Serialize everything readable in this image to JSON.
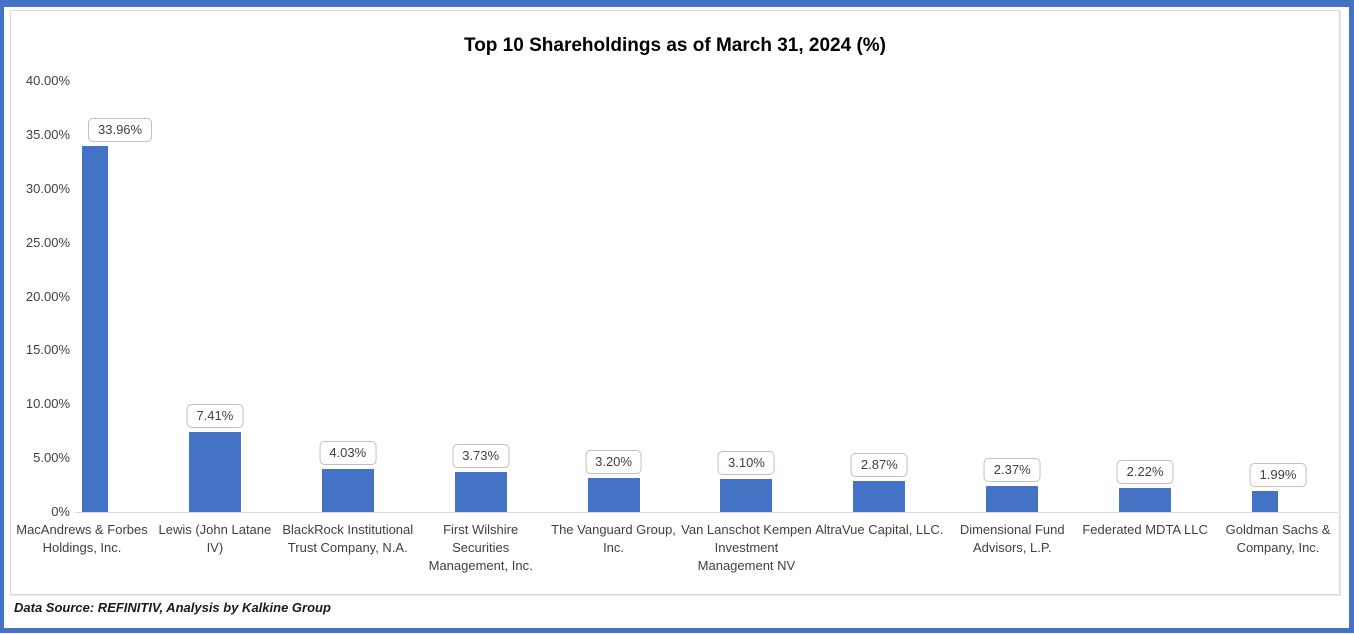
{
  "page": {
    "frame_color": "#4472C4",
    "background_color": "#FFFFFF",
    "chart_border_color": "#D9D9D9"
  },
  "chart_data": {
    "type": "bar",
    "title": "Top 10 Shareholdings as of March 31, 2024 (%)",
    "categories": [
      "MacAndrews & Forbes Holdings, Inc.",
      "Lewis (John Latane IV)",
      "BlackRock Institutional Trust Company, N.A.",
      "First Wilshire Securities Management, Inc.",
      "The Vanguard Group, Inc.",
      "Van Lanschot Kempen Investment Management NV",
      "AltraVue Capital, LLC.",
      "Dimensional Fund Advisors, L.P.",
      "Federated MDTA LLC",
      "Goldman Sachs & Company, Inc."
    ],
    "values": [
      33.96,
      7.41,
      4.03,
      3.73,
      3.2,
      3.1,
      2.87,
      2.37,
      2.22,
      1.99
    ],
    "data_labels": [
      "33.96%",
      "7.41%",
      "4.03%",
      "3.73%",
      "3.20%",
      "3.10%",
      "2.87%",
      "2.37%",
      "2.22%",
      "1.99%"
    ],
    "xlabel": "",
    "ylabel": "",
    "ylim": [
      0,
      40
    ],
    "y_ticks": [
      {
        "value": 0,
        "label": "0%"
      },
      {
        "value": 5,
        "label": "5.00%"
      },
      {
        "value": 10,
        "label": "10.00%"
      },
      {
        "value": 15,
        "label": "15.00%"
      },
      {
        "value": 20,
        "label": "20.00%"
      },
      {
        "value": 25,
        "label": "25.00%"
      },
      {
        "value": 30,
        "label": "30.00%"
      },
      {
        "value": 35,
        "label": "35.00%"
      },
      {
        "value": 40,
        "label": "40.00%"
      }
    ],
    "grid": "off",
    "legend": "none",
    "bar_color": "#4472C4",
    "axis_line_color": "#D9D9D9",
    "data_label_style": {
      "box_fill": "#FFFFFF",
      "box_border_color": "#BFBFBF"
    }
  },
  "footer": {
    "text": "Data Source: REFINITIV, Analysis by Kalkine Group"
  }
}
